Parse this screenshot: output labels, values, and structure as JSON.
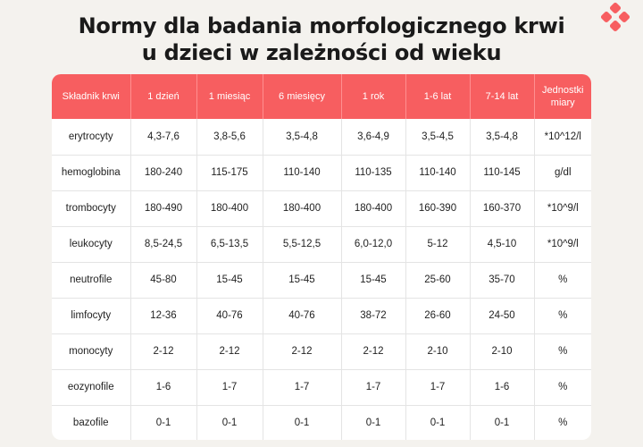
{
  "title": {
    "line1": "Normy dla badania morfologicznego krwi",
    "line2": "u dzieci w zależności od wieku"
  },
  "colors": {
    "header_bg": "#f75e60",
    "logo": "#f75e60",
    "page_bg": "#f4f2ee"
  },
  "logo_icon": "four-diamonds-logo",
  "table": {
    "headers": [
      "Składnik krwi",
      "1 dzień",
      "1 miesiąc",
      "6 miesięcy",
      "1 rok",
      "1-6 lat",
      "7-14 lat",
      "Jednostki miary"
    ],
    "rows": [
      [
        "erytrocyty",
        "4,3-7,6",
        "3,8-5,6",
        "3,5-4,8",
        "3,6-4,9",
        "3,5-4,5",
        "3,5-4,8",
        "*10^12/l"
      ],
      [
        "hemoglobina",
        "180-240",
        "115-175",
        "110-140",
        "110-135",
        "110-140",
        "110-145",
        "g/dl"
      ],
      [
        "trombocyty",
        "180-490",
        "180-400",
        "180-400",
        "180-400",
        "160-390",
        "160-370",
        "*10^9/l"
      ],
      [
        "leukocyty",
        "8,5-24,5",
        "6,5-13,5",
        "5,5-12,5",
        "6,0-12,0",
        "5-12",
        "4,5-10",
        "*10^9/l"
      ],
      [
        "neutrofile",
        "45-80",
        "15-45",
        "15-45",
        "15-45",
        "25-60",
        "35-70",
        "%"
      ],
      [
        "limfocyty",
        "12-36",
        "40-76",
        "40-76",
        "38-72",
        "26-60",
        "24-50",
        "%"
      ],
      [
        "monocyty",
        "2-12",
        "2-12",
        "2-12",
        "2-12",
        "2-10",
        "2-10",
        "%"
      ],
      [
        "eozynofile",
        "1-6",
        "1-7",
        "1-7",
        "1-7",
        "1-7",
        "1-6",
        "%"
      ],
      [
        "bazofile",
        "0-1",
        "0-1",
        "0-1",
        "0-1",
        "0-1",
        "0-1",
        "%"
      ]
    ]
  }
}
